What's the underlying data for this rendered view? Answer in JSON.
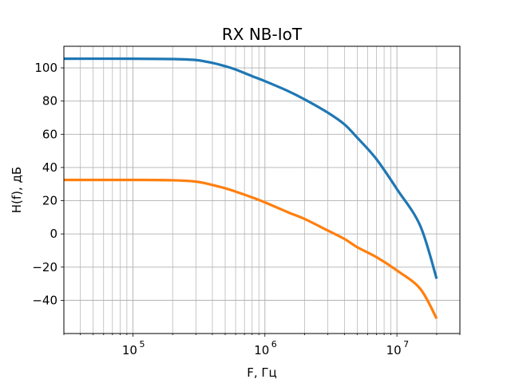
{
  "chart_data": {
    "type": "line",
    "title": "RX NB-IoT",
    "xlabel": "F, Гц",
    "ylabel": "H(f), дБ",
    "xscale": "log",
    "xlim": [
      30000,
      30000000
    ],
    "ylim": [
      -60,
      113
    ],
    "grid": true,
    "grid_minor_x": true,
    "xticks": [
      {
        "value": 100000,
        "base": "10",
        "exp": "5"
      },
      {
        "value": 1000000,
        "base": "10",
        "exp": "6"
      },
      {
        "value": 10000000,
        "base": "10",
        "exp": "7"
      }
    ],
    "yticks": [
      -40,
      -20,
      0,
      20,
      40,
      60,
      80,
      100
    ],
    "ytick_labels": [
      "−40",
      "−20",
      "0",
      "20",
      "40",
      "60",
      "80",
      "100"
    ],
    "series": [
      {
        "color": "#1f77b4",
        "x": [
          30000,
          100000,
          200000,
          300000,
          400000,
          500000,
          600000,
          800000,
          1000000,
          1500000,
          2000000,
          3000000,
          4000000,
          5000000,
          7000000,
          10000000,
          15000000,
          20000000
        ],
        "y": [
          105.5,
          105.5,
          105.3,
          104.7,
          103,
          101,
          99,
          95,
          92,
          86,
          81,
          73,
          66,
          58,
          45,
          27,
          5,
          -27
        ]
      },
      {
        "color": "#ff7f0e",
        "x": [
          30000,
          100000,
          200000,
          300000,
          400000,
          500000,
          600000,
          800000,
          1000000,
          1500000,
          2000000,
          3000000,
          4000000,
          5000000,
          7000000,
          10000000,
          15000000,
          20000000
        ],
        "y": [
          32.5,
          32.5,
          32.3,
          31.5,
          29.5,
          27.5,
          25.5,
          22,
          19,
          13,
          9,
          2,
          -3,
          -8,
          -14,
          -22,
          -33,
          -51
        ]
      }
    ]
  }
}
